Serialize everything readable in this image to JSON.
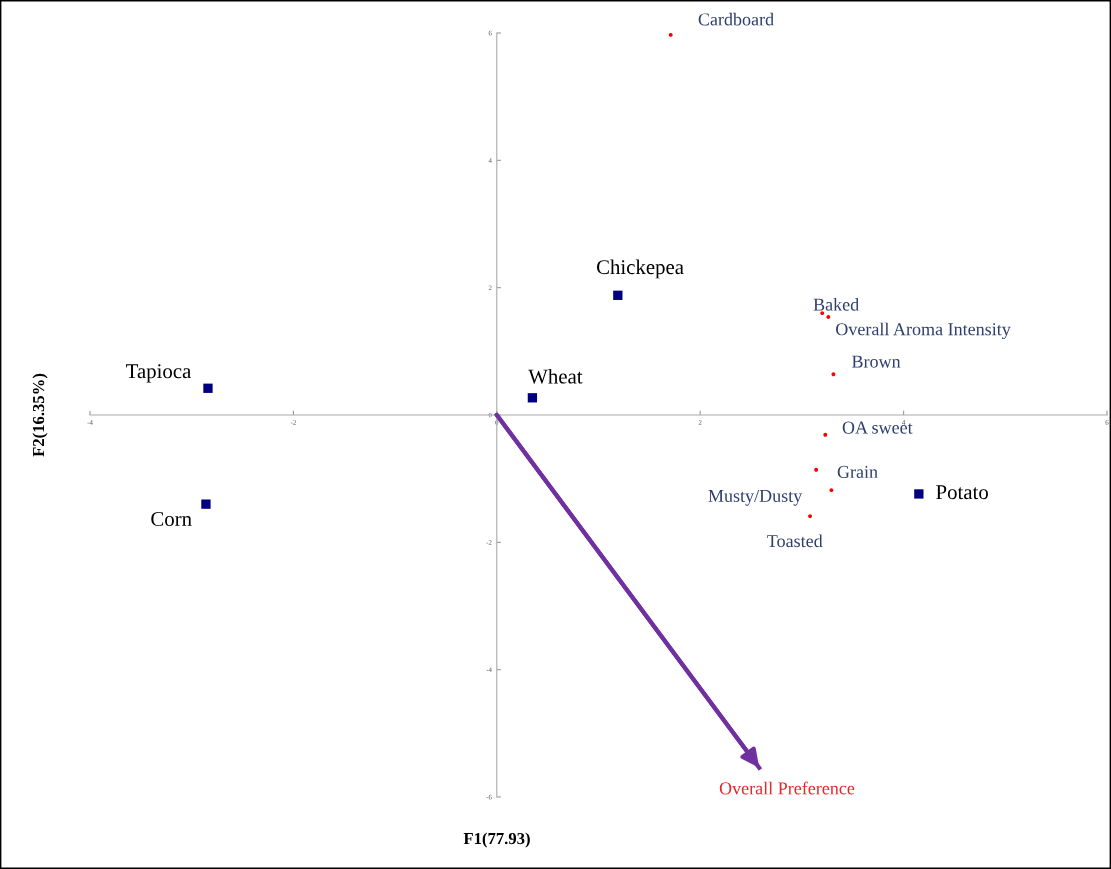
{
  "chart_data": {
    "type": "scatter",
    "xlabel": "F1(77.93)",
    "ylabel": "F2(16.35%)",
    "xlim": [
      -4,
      6
    ],
    "ylim": [
      -6,
      6
    ],
    "xticks": [
      -4,
      -2,
      0,
      2,
      4,
      6
    ],
    "yticks": [
      -6,
      -4,
      -2,
      0,
      2,
      4,
      6
    ],
    "grid": false,
    "legend": false,
    "series": [
      {
        "marker": "square",
        "color": "#00007f",
        "x": [
          -2.84,
          -2.86,
          0.35,
          1.19,
          4.15
        ],
        "values": [
          0.42,
          -1.4,
          0.27,
          1.88,
          -1.24
        ]
      },
      {
        "marker": "circle",
        "color": "#ff0000",
        "x": [
          1.71,
          3.2,
          3.26,
          3.31,
          3.23,
          3.14,
          3.29,
          3.08
        ],
        "values": [
          5.97,
          1.6,
          1.54,
          0.64,
          -0.31,
          -0.86,
          -1.18,
          -1.59
        ]
      },
      {
        "type": "line",
        "marker": "none",
        "color": "#7030a0",
        "x": [
          0,
          2.58
        ],
        "values": [
          0,
          -5.54
        ]
      }
    ],
    "annotations": [
      {
        "text": "Tapioca",
        "x": -2.84,
        "y": 0.42
      },
      {
        "text": "Corn",
        "x": -2.86,
        "y": -1.4
      },
      {
        "text": "Wheat",
        "x": 0.35,
        "y": 0.27
      },
      {
        "text": "Chickepea",
        "x": 1.19,
        "y": 1.88
      },
      {
        "text": "Potato",
        "x": 4.15,
        "y": -1.24
      },
      {
        "text": "Cardboard",
        "x": 1.71,
        "y": 5.97
      },
      {
        "text": "Baked",
        "x": 3.2,
        "y": 1.6
      },
      {
        "text": "Overall Aroma Intensity",
        "x": 3.26,
        "y": 1.54
      },
      {
        "text": "Brown",
        "x": 3.31,
        "y": 0.64
      },
      {
        "text": "OA sweet",
        "x": 3.23,
        "y": -0.31
      },
      {
        "text": "Musty/Dusty",
        "x": 3.14,
        "y": -0.86
      },
      {
        "text": "Grain",
        "x": 3.29,
        "y": -1.18
      },
      {
        "text": "Toasted",
        "x": 3.08,
        "y": -1.59
      },
      {
        "text": "Overall Preference",
        "x": 2.58,
        "y": -5.54
      }
    ]
  }
}
